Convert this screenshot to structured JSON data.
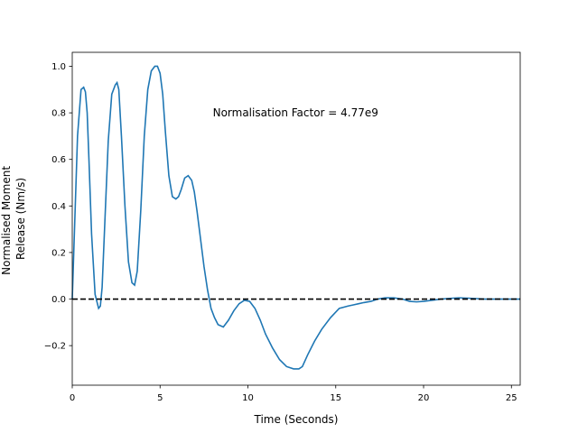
{
  "chart_data": {
    "type": "line",
    "title": "",
    "xlabel": "Time (Seconds)",
    "ylabel_lines": [
      "Normalised Moment",
      "Release (Nm/s)"
    ],
    "xlim": [
      0,
      25.5
    ],
    "ylim": [
      -0.37,
      1.06
    ],
    "xticks": [
      0,
      5,
      10,
      15,
      20,
      25
    ],
    "yticks": [
      -0.2,
      0.0,
      0.2,
      0.4,
      0.6,
      0.8,
      1.0
    ],
    "xtick_labels": [
      "0",
      "5",
      "10",
      "15",
      "20",
      "25"
    ],
    "ytick_labels": [
      "−0.2",
      "0.0",
      "0.2",
      "0.4",
      "0.6",
      "0.8",
      "1.0"
    ],
    "grid": false,
    "annotation": "Normalisation Factor = 4.77e9",
    "annotation_pos": {
      "x": 8.0,
      "y": 0.8
    },
    "reference_line": {
      "y": 0.0,
      "style": "dashed",
      "color": "#000000"
    },
    "series": [
      {
        "color": "#1f77b4",
        "x": [
          0,
          0.15,
          0.3,
          0.5,
          0.65,
          0.75,
          0.85,
          0.95,
          1.1,
          1.3,
          1.5,
          1.6,
          1.7,
          1.85,
          2.05,
          2.25,
          2.45,
          2.55,
          2.65,
          2.8,
          3.0,
          3.2,
          3.4,
          3.55,
          3.7,
          3.9,
          4.1,
          4.3,
          4.5,
          4.7,
          4.85,
          5.0,
          5.15,
          5.3,
          5.5,
          5.7,
          5.9,
          6.05,
          6.2,
          6.4,
          6.6,
          6.8,
          6.95,
          7.1,
          7.3,
          7.5,
          7.7,
          7.9,
          8.1,
          8.3,
          8.6,
          8.9,
          9.2,
          9.5,
          9.8,
          10.1,
          10.4,
          10.7,
          11.0,
          11.4,
          11.8,
          12.2,
          12.6,
          12.9,
          13.1,
          13.4,
          13.8,
          14.2,
          14.7,
          15.2,
          15.7,
          16.0,
          16.3,
          16.6,
          17.0,
          17.4,
          17.8,
          18.3,
          18.8,
          19.2,
          19.6,
          20.0,
          20.5,
          21.0,
          21.5,
          22.0,
          22.5,
          23.0,
          23.5,
          24.0,
          24.5,
          25.0,
          25.5
        ],
        "y": [
          0.0,
          0.35,
          0.7,
          0.9,
          0.91,
          0.89,
          0.8,
          0.6,
          0.28,
          0.02,
          -0.04,
          -0.03,
          0.05,
          0.32,
          0.68,
          0.88,
          0.92,
          0.93,
          0.9,
          0.7,
          0.4,
          0.16,
          0.07,
          0.06,
          0.12,
          0.38,
          0.7,
          0.9,
          0.98,
          1.0,
          1.0,
          0.97,
          0.88,
          0.72,
          0.53,
          0.44,
          0.43,
          0.44,
          0.47,
          0.52,
          0.53,
          0.51,
          0.46,
          0.38,
          0.26,
          0.14,
          0.04,
          -0.04,
          -0.08,
          -0.11,
          -0.12,
          -0.09,
          -0.05,
          -0.02,
          -0.005,
          -0.01,
          -0.04,
          -0.09,
          -0.15,
          -0.21,
          -0.26,
          -0.29,
          -0.3,
          -0.3,
          -0.29,
          -0.24,
          -0.18,
          -0.13,
          -0.08,
          -0.04,
          -0.03,
          -0.025,
          -0.02,
          -0.015,
          -0.01,
          0.0,
          0.005,
          0.005,
          0.0,
          -0.01,
          -0.012,
          -0.01,
          -0.005,
          0.0,
          0.003,
          0.005,
          0.004,
          0.002,
          0.0,
          0.0,
          0.0,
          0.0,
          0.0
        ]
      }
    ]
  }
}
